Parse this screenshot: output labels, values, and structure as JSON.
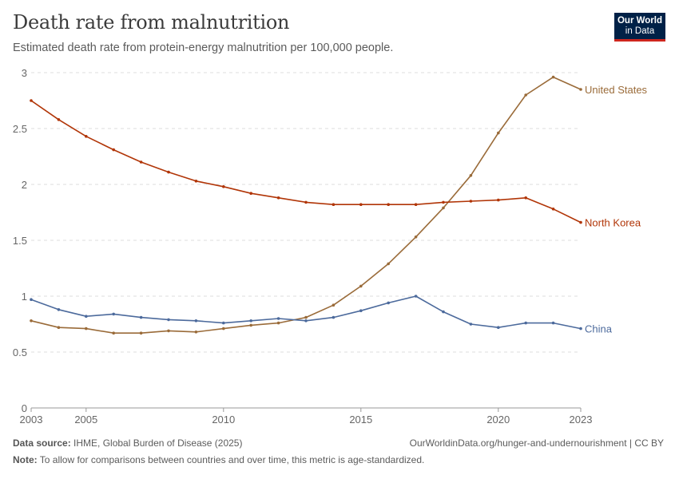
{
  "header": {
    "title": "Death rate from malnutrition",
    "subtitle": "Estimated death rate from protein-energy malnutrition per 100,000 people."
  },
  "logo": {
    "line1": "Our World",
    "line2": "in Data"
  },
  "footer": {
    "source_label": "Data source:",
    "source_text": " IHME, Global Burden of Disease (2025)",
    "url": "OurWorldinData.org/hunger-and-undernourishment | CC BY",
    "note_label": "Note:",
    "note_text": " To allow for comparisons between countries and over time, this metric is age-standardized."
  },
  "colors": {
    "United States": "#9a6b39",
    "North Korea": "#b13507",
    "China": "#4c6a9c",
    "grid": "#dddddd",
    "axis": "#999999"
  },
  "chart_data": {
    "type": "line",
    "title": "Death rate from malnutrition",
    "subtitle": "Estimated death rate from protein-energy malnutrition per 100,000 people.",
    "x": [
      2003,
      2004,
      2005,
      2006,
      2007,
      2008,
      2009,
      2010,
      2011,
      2012,
      2013,
      2014,
      2015,
      2016,
      2017,
      2018,
      2019,
      2020,
      2021,
      2022,
      2023
    ],
    "x_ticks": [
      2003,
      2005,
      2010,
      2015,
      2020,
      2023
    ],
    "y_ticks": [
      0,
      0.5,
      1,
      1.5,
      2,
      2.5,
      3
    ],
    "y_tick_labels": [
      "0",
      "0.5",
      "1",
      "1.5",
      "2",
      "2.5",
      "3"
    ],
    "xlim": [
      2003,
      2023
    ],
    "ylim": [
      0,
      3
    ],
    "grid": "horizontal dashed",
    "legend": "inline labels at line ends",
    "series": [
      {
        "name": "United States",
        "values": [
          0.78,
          0.72,
          0.71,
          0.67,
          0.67,
          0.69,
          0.68,
          0.71,
          0.74,
          0.76,
          0.81,
          0.92,
          1.09,
          1.29,
          1.53,
          1.79,
          2.08,
          2.46,
          2.8,
          2.96,
          2.85
        ]
      },
      {
        "name": "North Korea",
        "values": [
          2.75,
          2.58,
          2.43,
          2.31,
          2.2,
          2.11,
          2.03,
          1.98,
          1.92,
          1.88,
          1.84,
          1.82,
          1.82,
          1.82,
          1.82,
          1.84,
          1.85,
          1.86,
          1.88,
          1.78,
          1.66
        ]
      },
      {
        "name": "China",
        "values": [
          0.97,
          0.88,
          0.82,
          0.84,
          0.81,
          0.79,
          0.78,
          0.76,
          0.78,
          0.8,
          0.78,
          0.81,
          0.87,
          0.94,
          1.0,
          0.86,
          0.75,
          0.72,
          0.76,
          0.76,
          0.71
        ]
      }
    ]
  }
}
